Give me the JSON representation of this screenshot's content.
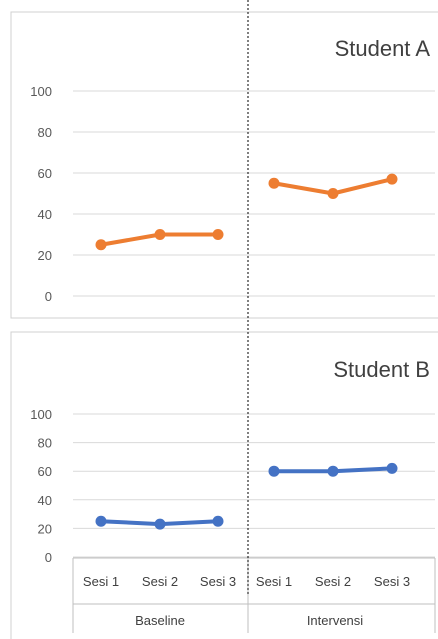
{
  "chart_data": {
    "type": "line",
    "phases": [
      "Baseline",
      "Intervensi"
    ],
    "categories": [
      "Sesi 1",
      "Sesi 2",
      "Sesi 3",
      "Sesi 1",
      "Sesi 2",
      "Sesi 3"
    ],
    "ylim": [
      0,
      100
    ],
    "yticks": [
      0,
      20,
      40,
      60,
      80,
      100
    ],
    "grid": true,
    "phase_divider": "dashed vertical line between Baseline and Intervensi",
    "panels": [
      {
        "title": "Student A",
        "color": "#ED7D31",
        "baseline": [
          25,
          30,
          30
        ],
        "intervensi": [
          55,
          50,
          57
        ]
      },
      {
        "title": "Student B",
        "color": "#4472C4",
        "baseline": [
          25,
          23,
          25
        ],
        "intervensi": [
          60,
          60,
          62
        ]
      }
    ]
  }
}
